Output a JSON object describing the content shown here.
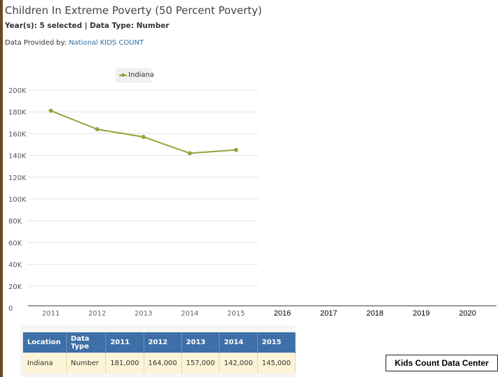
{
  "header": {
    "title": "Children In Extreme Poverty (50 Percent Poverty)",
    "subtitle": "Year(s): 5 selected | Data Type: Number",
    "provider_label": "Data Provided by:",
    "provider_link": "National KIDS COUNT"
  },
  "chart_data": {
    "type": "line",
    "x": [
      "2011",
      "2012",
      "2013",
      "2014",
      "2015",
      "2016",
      "2017",
      "2018",
      "2019",
      "2020"
    ],
    "series": [
      {
        "name": "Indiana",
        "x": [
          "2011",
          "2012",
          "2013",
          "2014",
          "2015"
        ],
        "values": [
          181000,
          164000,
          157000,
          142000,
          145000
        ]
      }
    ],
    "y_ticks": [
      "0",
      "20K",
      "40K",
      "60K",
      "80K",
      "100K",
      "120K",
      "140K",
      "160K",
      "180K",
      "200K"
    ],
    "ylim": [
      0,
      200000
    ],
    "legend_position": "top",
    "grid": true,
    "colors": {
      "series": "#8ba83a",
      "grid": "#e5e5e5"
    }
  },
  "table": {
    "headers": [
      "Location",
      "Data Type",
      "2011",
      "2012",
      "2013",
      "2014",
      "2015"
    ],
    "rows": [
      [
        "Indiana",
        "Number",
        "181,000",
        "164,000",
        "157,000",
        "142,000",
        "145,000"
      ]
    ]
  },
  "footer": {
    "label": "Kids Count Data Center"
  }
}
